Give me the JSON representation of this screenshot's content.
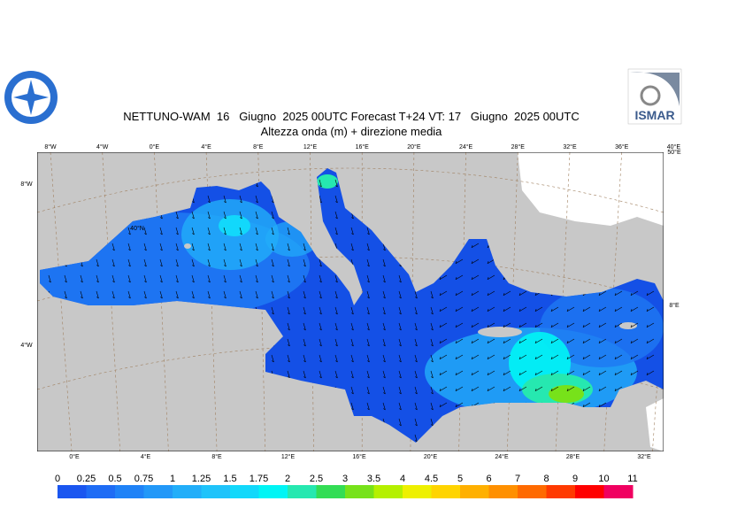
{
  "header": {
    "title": "NETTUNO-WAM  16   Giugno  2025 00UTC Forecast T+24 VT: 17   Giugno  2025 00UTC",
    "subtitle": "Altezza onda (m) + direzione media",
    "logo_text": "ISMAR"
  },
  "map": {
    "top_labels": [
      "8°W",
      "4°W",
      "0°E",
      "4°E",
      "8°E",
      "12°E",
      "16°E",
      "20°E",
      "24°E",
      "28°E",
      "32°E",
      "36°E",
      "40°E"
    ],
    "bottom_labels": [
      "0°E",
      "4°E",
      "8°E",
      "12°E",
      "16°E",
      "20°E",
      "24°E",
      "28°E",
      "32°E"
    ],
    "left_labels": [
      "8°W",
      "40°N",
      "4°W"
    ],
    "right_labels": [
      "50°E",
      "8°E"
    ]
  },
  "legend": {
    "levels": [
      0,
      0.25,
      0.5,
      0.75,
      1,
      1.25,
      1.5,
      1.75,
      2,
      2.5,
      3,
      3.5,
      4,
      4.5,
      5,
      6,
      7,
      8,
      9,
      10,
      11
    ],
    "colors": [
      "#1a56f0",
      "#1e6cf5",
      "#1f82f7",
      "#2298f8",
      "#22aef9",
      "#1fc3fa",
      "#12d8fb",
      "#00f5f5",
      "#26e8b0",
      "#33dd55",
      "#77e21a",
      "#b5f000",
      "#eef000",
      "#ffd400",
      "#ffb000",
      "#ff9000",
      "#ff6a00",
      "#ff3a00",
      "#ff0000",
      "#f00060"
    ]
  }
}
